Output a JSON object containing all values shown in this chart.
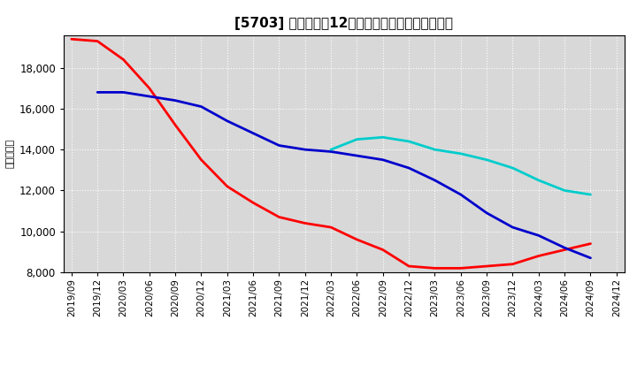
{
  "title": "[5703] 当期純利益12か月移動合計の平均値の推移",
  "ylabel": "（百万円）",
  "background_color": "#ffffff",
  "plot_bg_color": "#d8d8d8",
  "grid_color": "#ffffff",
  "ylim": [
    8000,
    19600
  ],
  "yticks": [
    8000,
    10000,
    12000,
    14000,
    16000,
    18000
  ],
  "series": {
    "3year": {
      "color": "#ff0000",
      "points": [
        [
          "2019/09",
          19400
        ],
        [
          "2019/12",
          19300
        ],
        [
          "2020/03",
          18400
        ],
        [
          "2020/06",
          17000
        ],
        [
          "2020/09",
          15200
        ],
        [
          "2020/12",
          13500
        ],
        [
          "2021/03",
          12200
        ],
        [
          "2021/06",
          11400
        ],
        [
          "2021/09",
          10700
        ],
        [
          "2021/12",
          10400
        ],
        [
          "2022/03",
          10200
        ],
        [
          "2022/06",
          9600
        ],
        [
          "2022/09",
          9100
        ],
        [
          "2022/12",
          8300
        ],
        [
          "2023/03",
          8200
        ],
        [
          "2023/06",
          8200
        ],
        [
          "2023/09",
          8300
        ],
        [
          "2023/12",
          8400
        ],
        [
          "2024/03",
          8800
        ],
        [
          "2024/06",
          9100
        ],
        [
          "2024/09",
          9400
        ]
      ]
    },
    "5year": {
      "color": "#0000cc",
      "points": [
        [
          "2019/12",
          16800
        ],
        [
          "2020/03",
          16800
        ],
        [
          "2020/06",
          16600
        ],
        [
          "2020/09",
          16400
        ],
        [
          "2020/12",
          16100
        ],
        [
          "2021/03",
          15400
        ],
        [
          "2021/06",
          14800
        ],
        [
          "2021/09",
          14200
        ],
        [
          "2021/12",
          14000
        ],
        [
          "2022/03",
          13900
        ],
        [
          "2022/06",
          13700
        ],
        [
          "2022/09",
          13500
        ],
        [
          "2022/12",
          13100
        ],
        [
          "2023/03",
          12500
        ],
        [
          "2023/06",
          11800
        ],
        [
          "2023/09",
          10900
        ],
        [
          "2023/12",
          10200
        ],
        [
          "2024/03",
          9800
        ],
        [
          "2024/06",
          9200
        ],
        [
          "2024/09",
          8700
        ]
      ]
    },
    "7year": {
      "color": "#00cccc",
      "points": [
        [
          "2022/03",
          14000
        ],
        [
          "2022/06",
          14500
        ],
        [
          "2022/09",
          14600
        ],
        [
          "2022/12",
          14400
        ],
        [
          "2023/03",
          14000
        ],
        [
          "2023/06",
          13800
        ],
        [
          "2023/09",
          13500
        ],
        [
          "2023/12",
          13100
        ],
        [
          "2024/03",
          12500
        ],
        [
          "2024/06",
          12000
        ],
        [
          "2024/09",
          11800
        ]
      ]
    },
    "10year": {
      "color": "#008000",
      "points": []
    }
  },
  "xtick_labels": [
    "2019/09",
    "2019/12",
    "2020/03",
    "2020/06",
    "2020/09",
    "2020/12",
    "2021/03",
    "2021/06",
    "2021/09",
    "2021/12",
    "2022/03",
    "2022/06",
    "2022/09",
    "2022/12",
    "2023/03",
    "2023/06",
    "2023/09",
    "2023/12",
    "2024/03",
    "2024/06",
    "2024/09",
    "2024/12"
  ]
}
